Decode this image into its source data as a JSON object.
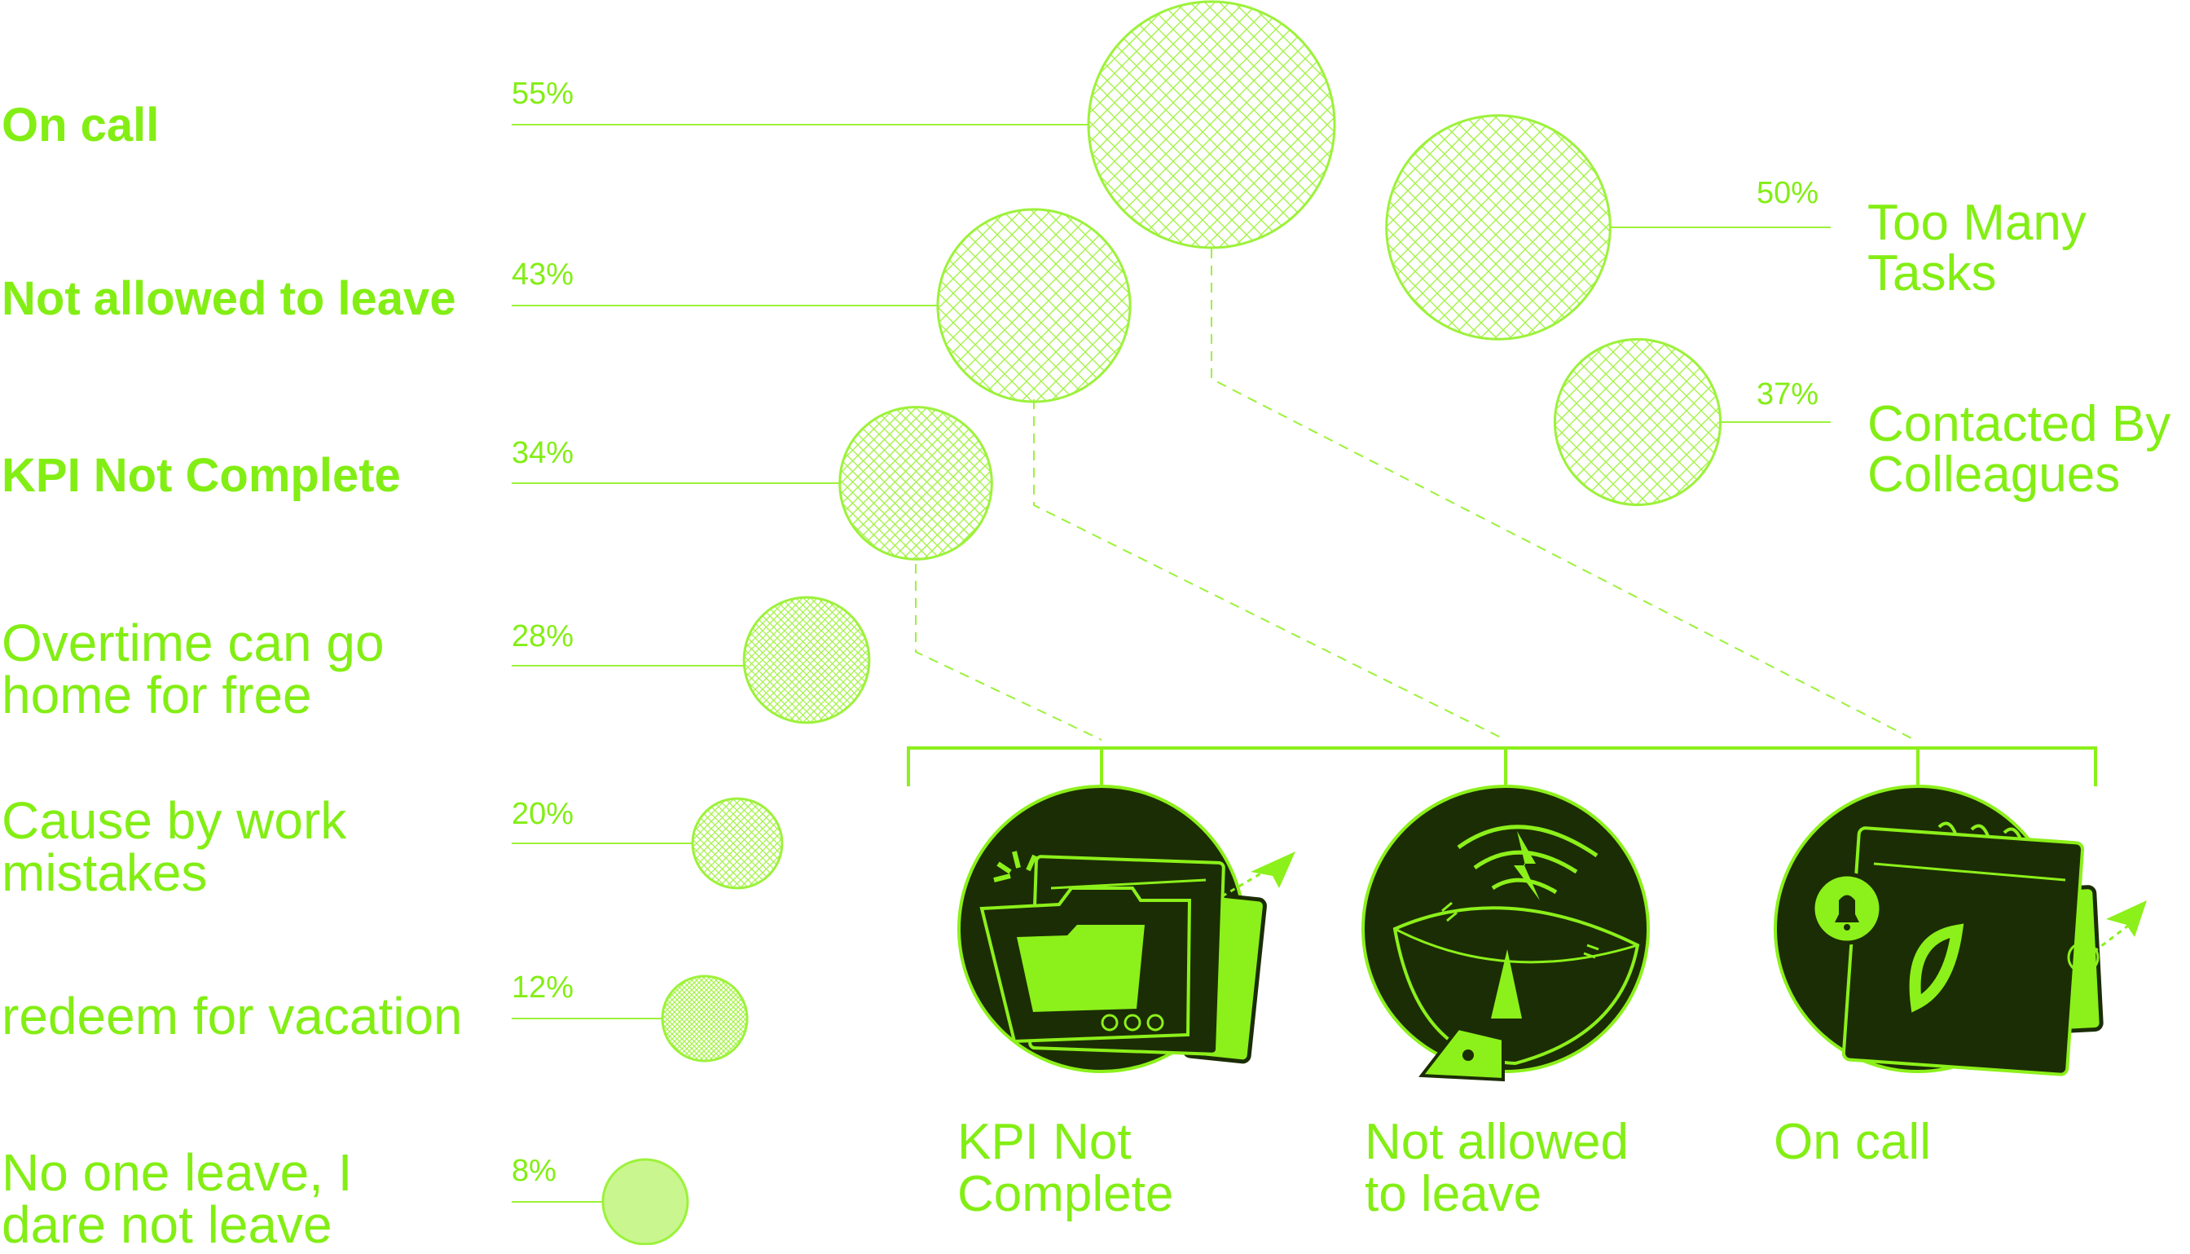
{
  "colors": {
    "accent": "#8cf01a",
    "line": "#9cf23a",
    "dark": "#1b2d05",
    "text": "#83ee14"
  },
  "chart_data": {
    "type": "bubble",
    "left_series": [
      {
        "label": "On call",
        "value": 55,
        "pct": "55%",
        "bold": true
      },
      {
        "label": "Not allowed to leave",
        "value": 43,
        "pct": "43%",
        "bold": true
      },
      {
        "label": "KPI Not Complete",
        "value": 34,
        "pct": "34%",
        "bold": true
      },
      {
        "label": "Overtime can go\nhome for free",
        "value": 28,
        "pct": "28%",
        "bold": false
      },
      {
        "label": "Cause by work\nmistakes",
        "value": 20,
        "pct": "20%",
        "bold": false
      },
      {
        "label": "redeem for vacation",
        "value": 12,
        "pct": "12%",
        "bold": false
      },
      {
        "label": "No one leave, I\ndare not leave",
        "value": 8,
        "pct": "8%",
        "bold": false
      }
    ],
    "right_series": [
      {
        "label": "Too Many\nTasks",
        "value": 50,
        "pct": "50%"
      },
      {
        "label": "Contacted By\nColleagues",
        "value": 37,
        "pct": "37%"
      }
    ]
  },
  "icons": [
    {
      "caption": "KPI Not\nComplete",
      "icon": "folder-icon"
    },
    {
      "caption": "Not allowed\nto leave",
      "icon": "wifi-satellite-icon"
    },
    {
      "caption": "On call",
      "icon": "calendar-bell-icon"
    }
  ]
}
